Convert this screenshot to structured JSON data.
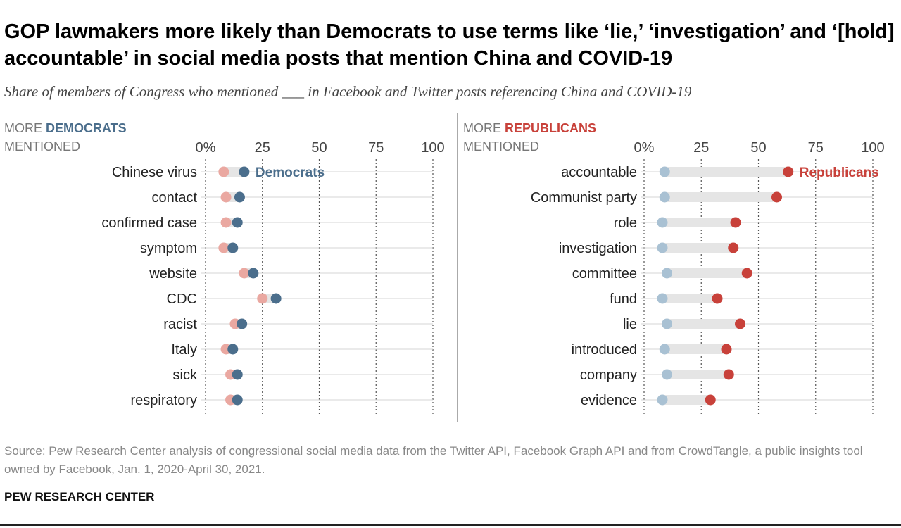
{
  "title": "GOP lawmakers more likely than Democrats to use terms like ‘lie,’ ‘investigation’ and ‘[hold] accountable’ in social media posts that mention China and COVID-19",
  "subtitle": "Share of members of Congress who mentioned ___ in Facebook and Twitter posts referencing China and COVID-19",
  "source": "Source: Pew Research Center analysis of congressional social media data from the Twitter API, Facebook Graph API and from CrowdTangle, a public insights tool owned by Facebook, Jan. 1, 2020-April 30, 2021.",
  "organization": "PEW RESEARCH CENTER",
  "colors": {
    "dem_dark": "#4b6e8c",
    "dem_light": "#a9c1d3",
    "rep_dark": "#c8413a",
    "rep_light": "#eaa8a1",
    "connector": "#e5e5e5"
  },
  "chart_data": [
    {
      "type": "dot",
      "panel": "left",
      "header_prefix": "MORE ",
      "header_party": "DEMOCRATS",
      "header_suffix": "MENTIONED",
      "xlim": [
        0,
        100
      ],
      "ticks": [
        "0%",
        "25",
        "50",
        "75",
        "100"
      ],
      "tick_values": [
        0,
        25,
        50,
        75,
        100
      ],
      "series_label": "Democrats",
      "categories": [
        "Chinese virus",
        "contact",
        "confirmed case",
        "symptom",
        "website",
        "CDC",
        "racist",
        "Italy",
        "sick",
        "respiratory"
      ],
      "series": [
        {
          "name": "Democrats",
          "values": [
            17,
            15,
            14,
            12,
            21,
            31,
            16,
            12,
            14,
            14
          ]
        },
        {
          "name": "Republicans",
          "values": [
            8,
            9,
            9,
            8,
            17,
            25,
            13,
            9,
            11,
            11
          ]
        }
      ]
    },
    {
      "type": "dot",
      "panel": "right",
      "header_prefix": "MORE ",
      "header_party": "REPUBLICANS",
      "header_suffix": "MENTIONED",
      "xlim": [
        0,
        100
      ],
      "ticks": [
        "0%",
        "25",
        "50",
        "75",
        "100"
      ],
      "tick_values": [
        0,
        25,
        50,
        75,
        100
      ],
      "series_label": "Republicans",
      "categories": [
        "accountable",
        "Communist party",
        "role",
        "investigation",
        "committee",
        "fund",
        "lie",
        "introduced",
        "company",
        "evidence"
      ],
      "series": [
        {
          "name": "Republicans",
          "values": [
            63,
            58,
            40,
            39,
            45,
            32,
            42,
            36,
            37,
            29
          ]
        },
        {
          "name": "Democrats",
          "values": [
            9,
            9,
            8,
            8,
            10,
            8,
            10,
            9,
            10,
            8
          ]
        }
      ]
    }
  ]
}
